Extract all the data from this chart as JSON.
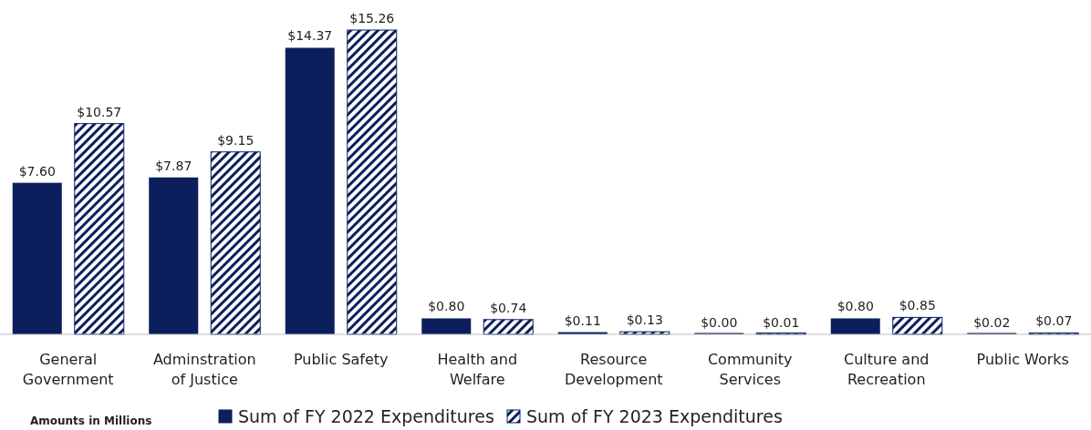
{
  "chart_data": {
    "type": "bar",
    "categories": [
      "General Government",
      "Adminstration of Justice",
      "Public Safety",
      "Health and Welfare",
      "Resource Development",
      "Community Services",
      "Culture and Recreation",
      "Public Works"
    ],
    "series": [
      {
        "name": "Sum of FY 2022 Expenditures",
        "color": "#0b1f5c",
        "values": [
          7.6,
          7.87,
          14.37,
          0.8,
          0.11,
          0.0,
          0.8,
          0.02
        ],
        "value_labels": [
          "$7.60",
          "$7.87",
          "$14.37",
          "$0.80",
          "$0.11",
          "$0.00",
          "$0.80",
          "$0.02"
        ]
      },
      {
        "name": "Sum of FY 2023 Expenditures",
        "color": "#0b1f5c",
        "values": [
          10.57,
          9.15,
          15.26,
          0.74,
          0.13,
          0.01,
          0.85,
          0.07
        ],
        "value_labels": [
          "$10.57",
          "$9.15",
          "$15.26",
          "$0.74",
          "$0.13",
          "$0.01",
          "$0.85",
          "$0.07"
        ]
      }
    ],
    "legend": "bottom",
    "annotations": [
      "Amounts in Millions"
    ]
  }
}
